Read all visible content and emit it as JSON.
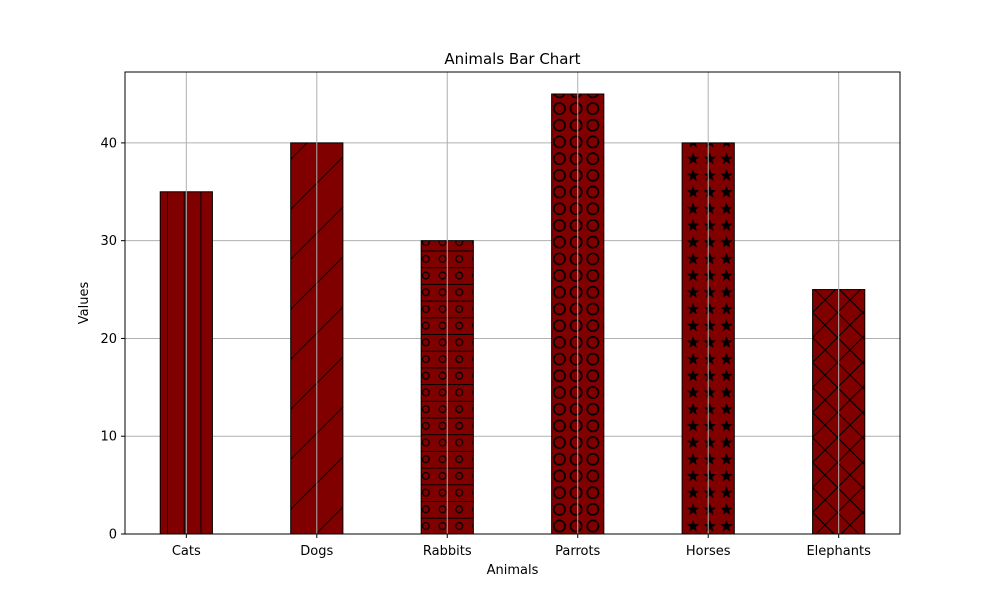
{
  "chart_data": {
    "type": "bar",
    "title": "Animals Bar Chart",
    "xlabel": "Animals",
    "ylabel": "Values",
    "categories": [
      "Cats",
      "Dogs",
      "Rabbits",
      "Parrots",
      "Horses",
      "Elephants"
    ],
    "values": [
      35,
      40,
      30,
      45,
      40,
      25
    ],
    "hatches": [
      "vertical-lines",
      "diagonal-lines",
      "horizontal-lines-circles",
      "large-circles",
      "stars",
      "crosshatch"
    ],
    "bar_color": "#800000",
    "hatch_color": "#000000",
    "yticks": [
      0,
      10,
      20,
      30,
      40
    ],
    "ylim": [
      0,
      47.25
    ],
    "grid": true
  }
}
